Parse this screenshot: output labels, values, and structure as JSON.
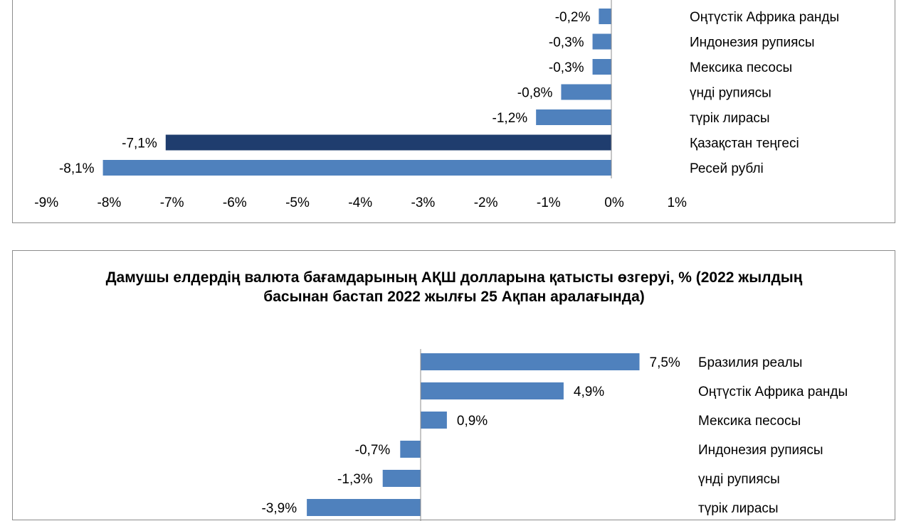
{
  "chart_data": [
    {
      "type": "bar",
      "orientation": "horizontal",
      "title": "",
      "categories": [
        "Оңтүстік Африка ранды",
        "Индонезия рупиясы",
        "Мексика песосы",
        "үнді рупиясы",
        "түрік лирасы",
        "Қазақстан теңгесі",
        "Ресей рублі"
      ],
      "values": [
        -0.2,
        -0.3,
        -0.3,
        -0.8,
        -1.2,
        -7.1,
        -8.1
      ],
      "value_labels": [
        "-0,2%",
        "-0,3%",
        "-0,3%",
        "-0,8%",
        "-1,2%",
        "-7,1%",
        "-8,1%"
      ],
      "highlight": "Қазақстан теңгесі",
      "xlim": [
        -9,
        1
      ],
      "x_ticks": [
        "-9%",
        "-8%",
        "-7%",
        "-6%",
        "-5%",
        "-4%",
        "-3%",
        "-2%",
        "-1%",
        "0%",
        "1%"
      ],
      "bar_color": "#4f81bd",
      "highlight_color": "#1f3d6e",
      "grid": false
    },
    {
      "type": "bar",
      "orientation": "horizontal",
      "title": "Дамушы елдердің валюта бағамдарының АҚШ долларына қатысты өзгеруі, %  (2022 жылдың басынан бастап 2022 жылғы 25 Ақпан аралағында)",
      "categories": [
        "Бразилия реалы",
        "Оңтүстік Африка ранды",
        "Мексика песосы",
        "Индонезия рупиясы",
        "үнді рупиясы",
        "түрік лирасы"
      ],
      "values": [
        7.5,
        4.9,
        0.9,
        -0.7,
        -1.3,
        -3.9
      ],
      "value_labels": [
        "7,5%",
        "4,9%",
        "0,9%",
        "-0,7%",
        "-1,3%",
        "-3,9%"
      ],
      "bar_color": "#4f81bd",
      "grid": false
    }
  ]
}
